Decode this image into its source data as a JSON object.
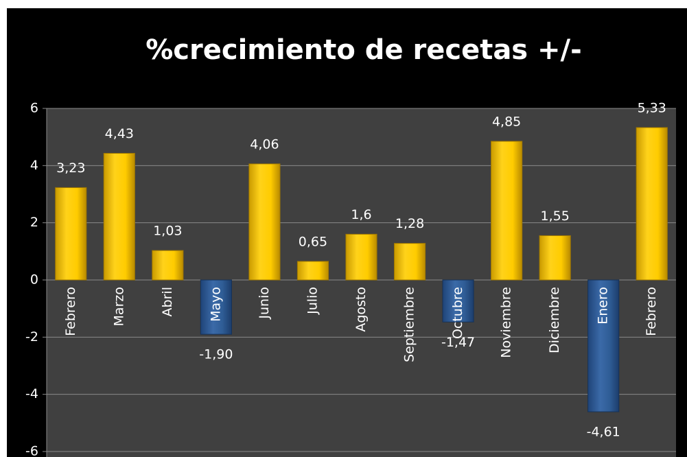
{
  "chart_data": {
    "type": "bar",
    "title": "%crecimiento de recetas +/-",
    "categories": [
      "Febrero",
      "Marzo",
      "Abril",
      "Mayo",
      "Junio",
      "Julio",
      "Agosto",
      "Septiembre",
      "Octubre",
      "Noviembre",
      "Diciembre",
      "Enero",
      "Febrero"
    ],
    "values": [
      3.23,
      4.43,
      1.03,
      -1.9,
      4.06,
      0.65,
      1.6,
      1.28,
      -1.47,
      4.85,
      1.55,
      -4.61,
      5.33
    ],
    "value_labels": [
      "3,23",
      "4,43",
      "1,03",
      "-1,90",
      "4,06",
      "0,65",
      "1,6",
      "1,28",
      "-1,47",
      "4,85",
      "1,55",
      "-4,61",
      "5,33"
    ],
    "color": "#ffcc00",
    "negative_color": "#2f5d96",
    "ylim": [
      -6,
      6
    ],
    "yticks": [
      -6,
      -4,
      -2,
      0,
      2,
      4,
      6
    ],
    "grid": true
  }
}
